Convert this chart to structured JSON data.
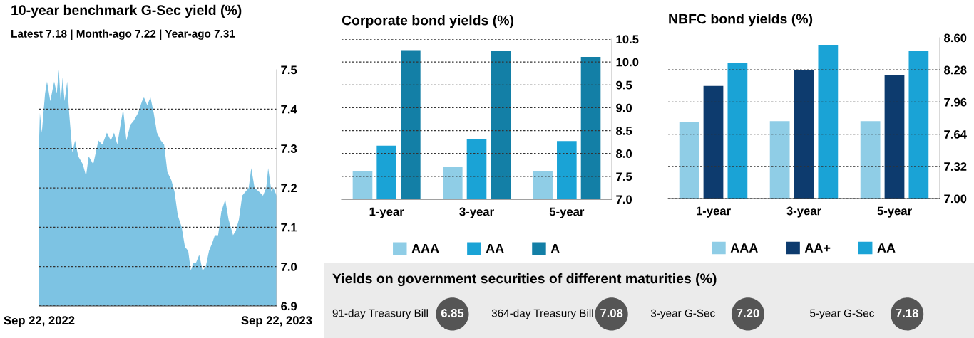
{
  "chart_data": [
    {
      "type": "area",
      "title": "10-year benchmark G-Sec yield (%)",
      "subtitle": "Latest 7.18 | Month-ago 7.22 | Year-ago 7.31",
      "color": "#7dc3e3",
      "x": [
        "2022-09-22",
        "2022-09-23",
        "2022-09-26",
        "2022-10-01",
        "2022-10-04",
        "2022-10-09",
        "2022-10-15",
        "2022-10-19",
        "2022-10-22",
        "2022-10-25",
        "2022-10-28",
        "2022-10-31",
        "2022-11-04",
        "2022-11-07",
        "2022-11-12",
        "2022-11-16",
        "2022-11-21",
        "2022-11-28",
        "2022-12-03",
        "2022-12-07",
        "2022-12-14",
        "2022-12-22",
        "2022-12-28",
        "2023-01-04",
        "2023-01-10",
        "2023-01-15",
        "2023-01-20",
        "2023-01-24",
        "2023-01-29",
        "2023-02-03",
        "2023-02-09",
        "2023-02-14",
        "2023-02-21",
        "2023-02-27",
        "2023-03-02",
        "2023-03-07",
        "2023-03-12",
        "2023-03-17",
        "2023-03-22",
        "2023-03-28",
        "2023-04-02",
        "2023-04-07",
        "2023-04-13",
        "2023-04-18",
        "2023-04-23",
        "2023-04-29",
        "2023-05-04",
        "2023-05-09",
        "2023-05-13",
        "2023-05-17",
        "2023-05-21",
        "2023-05-26",
        "2023-05-31",
        "2023-06-05",
        "2023-06-10",
        "2023-06-15",
        "2023-06-19",
        "2023-06-24",
        "2023-06-29",
        "2023-07-05",
        "2023-07-10",
        "2023-07-17",
        "2023-07-21",
        "2023-07-26",
        "2023-07-31",
        "2023-08-05",
        "2023-08-10",
        "2023-08-14",
        "2023-08-19",
        "2023-08-26",
        "2023-09-01",
        "2023-09-06",
        "2023-09-09",
        "2023-09-14",
        "2023-09-17",
        "2023-09-22"
      ],
      "values": [
        7.33,
        7.39,
        7.34,
        7.44,
        7.47,
        7.42,
        7.47,
        7.44,
        7.5,
        7.42,
        7.48,
        7.42,
        7.47,
        7.39,
        7.29,
        7.32,
        7.28,
        7.26,
        7.23,
        7.28,
        7.26,
        7.32,
        7.31,
        7.34,
        7.32,
        7.34,
        7.31,
        7.35,
        7.4,
        7.32,
        7.36,
        7.37,
        7.39,
        7.42,
        7.43,
        7.41,
        7.43,
        7.39,
        7.34,
        7.32,
        7.31,
        7.24,
        7.22,
        7.19,
        7.13,
        7.1,
        7.05,
        7.04,
        6.99,
        7.01,
        7.01,
        7.03,
        6.99,
        7.0,
        7.04,
        7.06,
        7.08,
        7.08,
        7.14,
        7.17,
        7.12,
        7.08,
        7.09,
        7.12,
        7.18,
        7.19,
        7.2,
        7.25,
        7.2,
        7.19,
        7.18,
        7.2,
        7.25,
        7.19,
        7.2,
        7.18
      ],
      "xlim": [
        "2022-09-22",
        "2023-09-22"
      ],
      "xticks": [
        {
          "value": "2022-09-22",
          "label": "Sep 22, 2022"
        },
        {
          "value": "2023-09-22",
          "label": "Sep 22, 2023"
        }
      ],
      "ylim": [
        6.9,
        7.5
      ],
      "yticks": [
        {
          "value": 6.9,
          "label": "6.9"
        },
        {
          "value": 7.0,
          "label": "7.0"
        },
        7.1,
        7.2,
        7.3,
        7.4,
        7.5
      ],
      "grid": "y"
    },
    {
      "type": "bar",
      "title": "Corporate bond yields (%)",
      "categories": [
        "1-year",
        "3-year",
        "5-year"
      ],
      "series": [
        {
          "name": "AAA",
          "color": "#8fcde6",
          "values": [
            7.62,
            7.7,
            7.62
          ]
        },
        {
          "name": "AA",
          "color": "#1aa3d6",
          "values": [
            8.17,
            8.32,
            8.27
          ]
        },
        {
          "name": "A",
          "color": "#137fa6",
          "values": [
            10.26,
            10.24,
            10.11
          ]
        }
      ],
      "ylim": [
        7.0,
        10.5
      ],
      "yticks": [
        {
          "value": 7.0,
          "label": "7.0"
        },
        7.5,
        {
          "value": 8.0,
          "label": "8.0"
        },
        8.5,
        {
          "value": 9.0,
          "label": "9.0"
        },
        9.5,
        {
          "value": 10.0,
          "label": "10.0"
        },
        10.5
      ],
      "grid": "y",
      "legend": "bottom"
    },
    {
      "type": "bar",
      "title": "NBFC bond yields (%)",
      "categories": [
        "1-year",
        "3-year",
        "5-year"
      ],
      "series": [
        {
          "name": "AAA",
          "color": "#8fcde6",
          "values": [
            7.76,
            7.77,
            7.77
          ]
        },
        {
          "name": "AA+",
          "color": "#0d3b6e",
          "values": [
            8.12,
            8.28,
            8.23
          ]
        },
        {
          "name": "AA",
          "color": "#1aa3d6",
          "values": [
            8.35,
            8.53,
            8.47
          ]
        }
      ],
      "ylim": [
        7.0,
        8.6
      ],
      "yticks": [
        {
          "value": 7.0,
          "label": "7.00"
        },
        7.32,
        7.64,
        7.96,
        8.28,
        {
          "value": 8.6,
          "label": "8.60"
        }
      ],
      "grid": "y",
      "legend": "bottom"
    },
    {
      "type": "other",
      "title": "Yields on government securities of different maturities (%)",
      "categories": [
        "91-day Treasury Bill",
        "364-day Treasury Bill",
        "3-year G-Sec",
        "5-year G-Sec"
      ],
      "values": [
        6.85,
        7.08,
        7.2,
        7.18
      ],
      "value_labels": [
        "6.85",
        "7.08",
        "7.20",
        "7.18"
      ],
      "color": "#555555"
    }
  ]
}
